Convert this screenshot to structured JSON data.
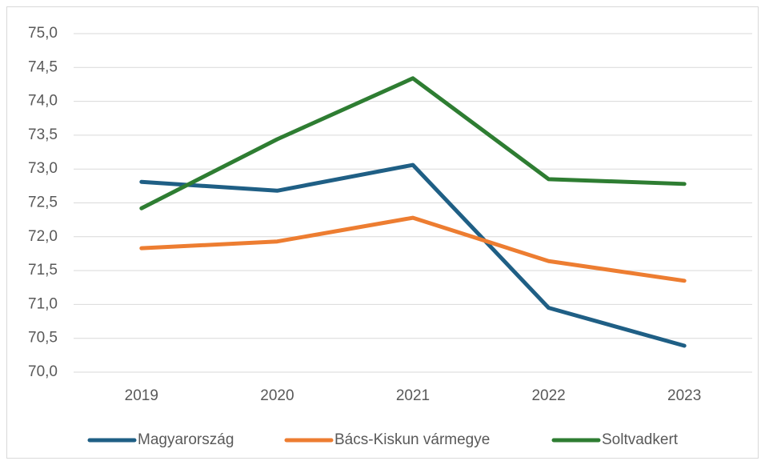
{
  "chart_data": {
    "type": "line",
    "categories": [
      "2019",
      "2020",
      "2021",
      "2022",
      "2023"
    ],
    "series": [
      {
        "name": "Magyarország",
        "color": "#1f5f85",
        "values": [
          72.81,
          72.68,
          73.06,
          70.95,
          70.39
        ]
      },
      {
        "name": "Bács-Kiskun vármegye",
        "color": "#ed7d31",
        "values": [
          71.83,
          71.93,
          72.28,
          71.64,
          71.35
        ]
      },
      {
        "name": "Soltvadkert",
        "color": "#2e7d32",
        "values": [
          72.42,
          73.44,
          74.34,
          72.85,
          72.78
        ]
      }
    ],
    "ylim": [
      70,
      75
    ],
    "yticks": [
      {
        "value": 70,
        "label": "70,0"
      },
      {
        "value": 70.5,
        "label": "70,5"
      },
      {
        "value": 71,
        "label": "71,0"
      },
      {
        "value": 71.5,
        "label": "71,5"
      },
      {
        "value": 72,
        "label": "72,0"
      },
      {
        "value": 72.5,
        "label": "72,5"
      },
      {
        "value": 73,
        "label": "73,0"
      },
      {
        "value": 73.5,
        "label": "73,5"
      },
      {
        "value": 74,
        "label": "74,0"
      },
      {
        "value": 74.5,
        "label": "74,5"
      },
      {
        "value": 75,
        "label": "75,0"
      }
    ],
    "grid": true,
    "legend": "bottom"
  }
}
